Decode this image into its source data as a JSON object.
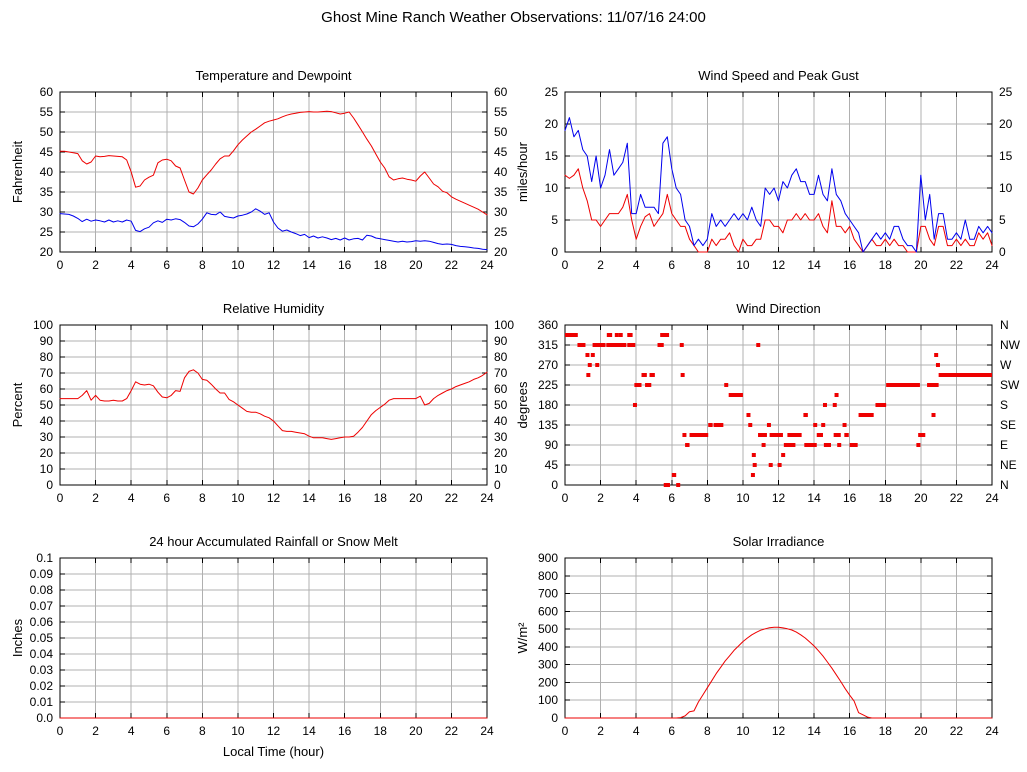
{
  "title": "Ghost Mine Ranch Weather Observations: 11/07/16 24:00",
  "palette": {
    "red": "#ee0000",
    "blue": "#0000ee",
    "grid": "#b0b0b0",
    "border": "#000000",
    "text": "#000000"
  },
  "chart_data": [
    {
      "id": "temperature-and-dewpoint",
      "type": "line",
      "title": "Temperature and Dewpoint",
      "ylabel": "Fahrenheit",
      "xlim": [
        0,
        24
      ],
      "xticks": [
        0,
        2,
        4,
        6,
        8,
        10,
        12,
        14,
        16,
        18,
        20,
        22,
        24
      ],
      "ylim": [
        20,
        60
      ],
      "yticks": [
        20,
        25,
        30,
        35,
        40,
        45,
        50,
        55,
        60
      ],
      "mirror_y_labels": true,
      "series": [
        {
          "name": "temperature",
          "color": "#ee0000",
          "x0": 0,
          "dx": 0.25,
          "values": [
            45.2,
            45.2,
            45.0,
            44.8,
            44.6,
            42.8,
            42.0,
            42.5,
            44.0,
            43.8,
            43.9,
            44.1,
            44.0,
            43.9,
            43.8,
            43.0,
            40.0,
            36.2,
            36.5,
            38.0,
            38.7,
            39.2,
            42.3,
            43.0,
            43.2,
            42.8,
            41.5,
            41.0,
            38.0,
            35.0,
            34.5,
            36.0,
            38.0,
            39.3,
            40.5,
            42.0,
            43.3,
            44.0,
            44.0,
            45.3,
            46.8,
            48.0,
            49.0,
            50.0,
            50.7,
            51.5,
            52.3,
            52.7,
            53.0,
            53.3,
            53.8,
            54.2,
            54.5,
            54.7,
            54.9,
            55.0,
            55.1,
            55.0,
            55.0,
            55.1,
            55.2,
            55.1,
            54.8,
            54.5,
            54.7,
            55.0,
            53.5,
            51.8,
            50.0,
            48.2,
            46.5,
            44.5,
            42.5,
            41.0,
            38.8,
            38.0,
            38.3,
            38.5,
            38.2,
            38.0,
            37.7,
            39.0,
            40.0,
            38.5,
            37.0,
            36.3,
            35.2,
            34.8,
            33.8,
            33.2,
            32.7,
            32.2,
            31.7,
            31.2,
            30.7,
            30.0,
            29.3
          ]
        },
        {
          "name": "dewpoint",
          "color": "#0000ee",
          "x0": 0,
          "dx": 0.25,
          "values": [
            29.6,
            29.5,
            29.4,
            29.0,
            28.4,
            27.6,
            28.2,
            27.7,
            28.0,
            27.8,
            27.5,
            28.0,
            27.5,
            27.8,
            27.5,
            28.0,
            27.7,
            25.4,
            25.1,
            25.8,
            26.2,
            27.3,
            27.8,
            27.4,
            28.2,
            28.0,
            28.3,
            28.1,
            27.4,
            26.5,
            26.3,
            27.0,
            28.2,
            29.8,
            29.4,
            29.3,
            30.0,
            28.9,
            28.7,
            28.5,
            29.0,
            29.2,
            29.5,
            30.0,
            30.8,
            30.2,
            29.4,
            29.8,
            27.5,
            26.0,
            25.2,
            25.5,
            25.0,
            24.6,
            24.1,
            24.4,
            23.6,
            24.0,
            23.5,
            23.8,
            23.5,
            23.1,
            23.4,
            23.0,
            23.5,
            23.0,
            23.3,
            23.4,
            23.0,
            24.2,
            24.0,
            23.5,
            23.3,
            23.1,
            22.9,
            22.7,
            22.5,
            22.7,
            22.5,
            22.6,
            22.8,
            22.7,
            22.8,
            22.7,
            22.4,
            22.1,
            21.9,
            22.0,
            21.9,
            21.6,
            21.4,
            21.3,
            21.2,
            21.0,
            20.9,
            20.7,
            20.6
          ]
        }
      ]
    },
    {
      "id": "wind-speed-and-peak-gust",
      "type": "line",
      "title": "Wind Speed and Peak Gust",
      "ylabel": "miles/hour",
      "xlim": [
        0,
        24
      ],
      "xticks": [
        0,
        2,
        4,
        6,
        8,
        10,
        12,
        14,
        16,
        18,
        20,
        22,
        24
      ],
      "ylim": [
        0,
        25
      ],
      "yticks": [
        0,
        5,
        10,
        15,
        20,
        25
      ],
      "mirror_y_labels": true,
      "series": [
        {
          "name": "wind_speed",
          "color": "#ee0000",
          "x0": 0,
          "dx": 0.25,
          "values": [
            12,
            11.5,
            12,
            13,
            10,
            8,
            5,
            5,
            4,
            5,
            6,
            6,
            6,
            7,
            9,
            5,
            2,
            4,
            5.5,
            6,
            4,
            5,
            6,
            9,
            6,
            5,
            4,
            4,
            2,
            1,
            0,
            0,
            0,
            2,
            1,
            2,
            2,
            3,
            1,
            0,
            2,
            1,
            1,
            2,
            2,
            5,
            5,
            4,
            4,
            3,
            5,
            5,
            6,
            5,
            6,
            5,
            5,
            6,
            4,
            3,
            8,
            4,
            4,
            3,
            4,
            2,
            1,
            0,
            1,
            2,
            1,
            1,
            2,
            1,
            2,
            1,
            1,
            0,
            0,
            0,
            4,
            4,
            2,
            1,
            4,
            4,
            1,
            1,
            2,
            1,
            2,
            1,
            1,
            3,
            2,
            3,
            1
          ]
        },
        {
          "name": "peak_gust",
          "color": "#0000ee",
          "x0": 0,
          "dx": 0.25,
          "values": [
            19,
            21,
            18,
            19,
            16,
            15,
            11,
            15,
            10,
            12,
            16,
            12,
            13,
            14,
            17,
            6,
            6,
            9,
            7,
            7,
            7,
            6,
            17,
            18,
            13,
            10,
            9,
            5,
            4,
            1,
            2,
            1,
            2,
            6,
            4,
            5,
            4,
            5,
            6,
            5,
            6,
            5,
            7,
            5,
            4,
            10,
            9,
            10,
            8,
            11,
            10,
            12,
            13,
            11,
            11,
            9,
            9,
            12,
            9,
            8,
            13,
            9,
            8,
            6,
            5,
            4,
            3,
            0,
            1,
            2,
            3,
            2,
            3,
            2,
            4,
            4,
            2,
            1,
            1,
            0,
            12,
            5,
            9,
            2,
            6,
            6,
            2,
            2,
            3,
            2,
            5,
            2,
            2,
            4,
            3,
            4,
            3
          ]
        }
      ]
    },
    {
      "id": "relative-humidity",
      "type": "line",
      "title": "Relative Humidity",
      "ylabel": "Percent",
      "xlim": [
        0,
        24
      ],
      "xticks": [
        0,
        2,
        4,
        6,
        8,
        10,
        12,
        14,
        16,
        18,
        20,
        22,
        24
      ],
      "ylim": [
        0,
        100
      ],
      "yticks": [
        0,
        10,
        20,
        30,
        40,
        50,
        60,
        70,
        80,
        90,
        100
      ],
      "mirror_y_labels": true,
      "series": [
        {
          "name": "relative_humidity",
          "color": "#ee0000",
          "x0": 0,
          "dx": 0.25,
          "values": [
            54,
            54,
            54,
            54,
            54,
            56,
            59,
            53,
            56,
            53,
            52.5,
            52.5,
            53,
            52.5,
            52.5,
            54,
            59,
            64.5,
            63,
            62.5,
            63,
            62,
            58,
            55,
            54.5,
            56,
            59,
            58.5,
            67,
            71,
            72,
            70,
            66,
            65.5,
            63,
            60,
            57.5,
            57.5,
            53.5,
            52,
            50,
            48,
            46,
            45.5,
            45.5,
            44.5,
            43,
            42,
            40,
            37,
            34,
            33.5,
            33.5,
            33,
            32.5,
            32,
            30.5,
            29.5,
            29.5,
            29.5,
            29,
            28.5,
            29,
            29.5,
            30,
            30,
            30.5,
            33,
            36,
            40,
            44,
            46.5,
            48.5,
            50.5,
            53,
            54,
            54,
            54,
            54,
            54,
            54,
            55.5,
            50,
            51,
            54,
            56,
            57.5,
            59,
            60,
            61.5,
            62.5,
            63.5,
            64.5,
            66,
            67,
            68.5,
            70.5
          ]
        }
      ]
    },
    {
      "id": "wind-direction",
      "type": "scatter-segments",
      "title": "Wind Direction",
      "ylabel": "degrees",
      "xlim": [
        0,
        24
      ],
      "xticks": [
        0,
        2,
        4,
        6,
        8,
        10,
        12,
        14,
        16,
        18,
        20,
        22,
        24
      ],
      "ylim": [
        0,
        360
      ],
      "yticks": [
        0,
        45,
        90,
        135,
        180,
        225,
        270,
        315,
        360
      ],
      "right_labels": [
        "N",
        "NE",
        "E",
        "SE",
        "S",
        "SW",
        "W",
        "NW",
        "N"
      ],
      "segment_color": "#ee0000",
      "segments": [
        [
          337.5,
          0,
          0.72
        ],
        [
          337.5,
          2.35,
          2.65
        ],
        [
          337.5,
          2.8,
          2.95
        ],
        [
          337.5,
          3.02,
          3.12
        ],
        [
          337.5,
          3.5,
          3.8
        ],
        [
          337.5,
          5.35,
          5.85
        ],
        [
          315,
          0.7,
          1.15
        ],
        [
          315,
          1.55,
          2.28
        ],
        [
          315,
          2.32,
          3.45
        ],
        [
          315,
          3.5,
          3.95
        ],
        [
          315,
          5.2,
          5.55
        ],
        [
          315,
          6.45,
          6.65
        ],
        [
          315,
          10.75,
          10.88
        ],
        [
          292.5,
          1.15,
          1.3
        ],
        [
          292.5,
          1.45,
          1.56
        ],
        [
          292.5,
          20.75,
          20.88
        ],
        [
          270,
          1.28,
          1.4
        ],
        [
          270,
          1.7,
          1.82
        ],
        [
          270,
          20.85,
          21.0
        ],
        [
          247.5,
          1.2,
          1.32
        ],
        [
          247.5,
          4.3,
          4.6
        ],
        [
          247.5,
          4.75,
          5.05
        ],
        [
          247.5,
          6.5,
          6.62
        ],
        [
          247.5,
          21.0,
          24.0
        ],
        [
          225,
          3.9,
          4.3
        ],
        [
          225,
          4.5,
          4.85
        ],
        [
          225,
          8.95,
          9.08
        ],
        [
          225,
          18.05,
          19.95
        ],
        [
          225,
          20.35,
          21.0
        ],
        [
          202.5,
          9.2,
          10.0
        ],
        [
          202.5,
          15.15,
          15.28
        ],
        [
          180,
          3.82,
          3.94
        ],
        [
          180,
          14.5,
          14.62
        ],
        [
          180,
          15.05,
          15.17
        ],
        [
          180,
          17.45,
          18.05
        ],
        [
          157.5,
          10.2,
          10.32
        ],
        [
          157.5,
          13.4,
          13.65
        ],
        [
          157.5,
          16.5,
          17.35
        ],
        [
          157.5,
          20.6,
          20.72
        ],
        [
          135,
          8.05,
          8.3
        ],
        [
          135,
          8.35,
          8.9
        ],
        [
          135,
          10.3,
          10.42
        ],
        [
          135,
          11.35,
          11.47
        ],
        [
          135,
          13.95,
          14.1
        ],
        [
          135,
          14.4,
          14.52
        ],
        [
          135,
          15.6,
          15.72
        ],
        [
          112.5,
          6.6,
          6.72
        ],
        [
          112.5,
          7.0,
          8.05
        ],
        [
          112.5,
          10.85,
          11.35
        ],
        [
          112.5,
          11.5,
          12.25
        ],
        [
          112.5,
          12.5,
          13.3
        ],
        [
          112.5,
          14.15,
          14.5
        ],
        [
          112.5,
          15.1,
          15.5
        ],
        [
          112.5,
          15.7,
          15.95
        ],
        [
          112.5,
          19.85,
          20.25
        ],
        [
          90,
          6.75,
          7.0
        ],
        [
          90,
          11.05,
          11.17
        ],
        [
          90,
          12.3,
          12.95
        ],
        [
          90,
          13.45,
          14.15
        ],
        [
          90,
          14.55,
          14.95
        ],
        [
          90,
          15.3,
          15.42
        ],
        [
          90,
          16.0,
          16.45
        ],
        [
          90,
          19.75,
          19.87
        ],
        [
          67.5,
          10.5,
          10.62
        ],
        [
          67.5,
          12.15,
          12.27
        ],
        [
          45,
          10.55,
          10.67
        ],
        [
          45,
          11.45,
          11.57
        ],
        [
          45,
          11.95,
          12.07
        ],
        [
          22.5,
          6.0,
          6.25
        ],
        [
          22.5,
          10.45,
          10.57
        ],
        [
          0,
          5.55,
          5.9
        ],
        [
          0,
          6.25,
          6.4
        ]
      ]
    },
    {
      "id": "accumulated-rainfall",
      "type": "line",
      "title": "24 hour Accumulated Rainfall or Snow Melt",
      "ylabel": "Inches",
      "xlabel": "Local Time (hour)",
      "xlim": [
        0,
        24
      ],
      "xticks": [
        0,
        2,
        4,
        6,
        8,
        10,
        12,
        14,
        16,
        18,
        20,
        22,
        24
      ],
      "ylim": [
        0,
        0.1
      ],
      "yticks": [
        0,
        0.01,
        0.02,
        0.03,
        0.04,
        0.05,
        0.06,
        0.07,
        0.08,
        0.09,
        0.1
      ],
      "ytick_labels": [
        "0.0",
        "0.01",
        "0.02",
        "0.03",
        "0.04",
        "0.05",
        "0.06",
        "0.07",
        "0.08",
        "0.09",
        "0.1"
      ],
      "mirror_y_labels": false,
      "series": [
        {
          "name": "rainfall",
          "color": "#ee0000",
          "x0": 0,
          "dx": 24,
          "values": [
            0,
            0
          ]
        }
      ]
    },
    {
      "id": "solar-irradiance",
      "type": "line",
      "title": "Solar Irradiance",
      "ylabel": "W/m²",
      "xlim": [
        0,
        24
      ],
      "xticks": [
        0,
        2,
        4,
        6,
        8,
        10,
        12,
        14,
        16,
        18,
        20,
        22,
        24
      ],
      "ylim": [
        0,
        900
      ],
      "yticks": [
        0,
        100,
        200,
        300,
        400,
        500,
        600,
        700,
        800,
        900
      ],
      "mirror_y_labels": false,
      "series": [
        {
          "name": "solar_irradiance",
          "color": "#ee0000",
          "x0": 0,
          "dx": 0.25,
          "values": [
            0,
            0,
            0,
            0,
            0,
            0,
            0,
            0,
            0,
            0,
            0,
            0,
            0,
            0,
            0,
            0,
            0,
            0,
            0,
            0,
            0,
            0,
            0,
            0,
            0,
            0,
            2,
            12,
            35,
            40,
            90,
            130,
            170,
            210,
            250,
            285,
            320,
            350,
            380,
            405,
            430,
            450,
            468,
            482,
            494,
            502,
            508,
            510,
            510,
            507,
            502,
            495,
            483,
            468,
            450,
            428,
            405,
            378,
            348,
            315,
            280,
            243,
            205,
            165,
            128,
            95,
            30,
            18,
            5,
            0,
            0,
            0,
            0,
            0,
            0,
            0,
            0,
            0,
            0,
            0,
            0,
            0,
            0,
            0,
            0,
            0,
            0,
            0,
            0,
            0,
            0,
            0,
            0,
            0,
            0,
            0,
            0
          ]
        }
      ]
    }
  ]
}
